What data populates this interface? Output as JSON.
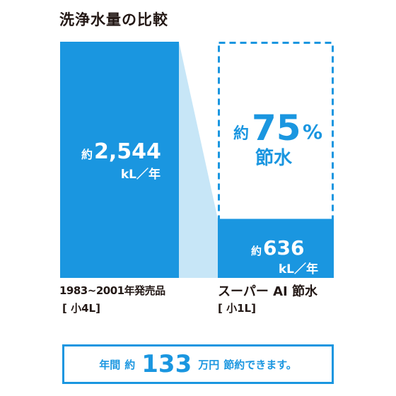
{
  "title": "洗浄水量の比較",
  "colors": {
    "bar": "#1a96e0",
    "connector": "#c7e6f7",
    "dash": "#1a96e0",
    "text_white": "#ffffff",
    "caption": "#231815"
  },
  "chart_data": {
    "type": "bar",
    "categories": [
      "1983~2001年発売品",
      "スーパー AI 節水"
    ],
    "sublabels": [
      "[ 小4L]",
      "[ 小1L]"
    ],
    "values": [
      2544,
      636
    ],
    "unit": "kL／年",
    "value_labels": [
      {
        "prefix": "約",
        "value": "2,544",
        "unit": "kL／年"
      },
      {
        "prefix": "約",
        "value": "636",
        "unit": "kL／年"
      }
    ],
    "ylim": [
      0,
      2544
    ],
    "savings_percent": {
      "prefix": "約",
      "value": "75",
      "suffix": "%",
      "label": "節水"
    }
  },
  "savings_box": {
    "part1": "年間",
    "part2": "約",
    "amount": "133",
    "part3": "万円",
    "part4": "節約できます。"
  }
}
